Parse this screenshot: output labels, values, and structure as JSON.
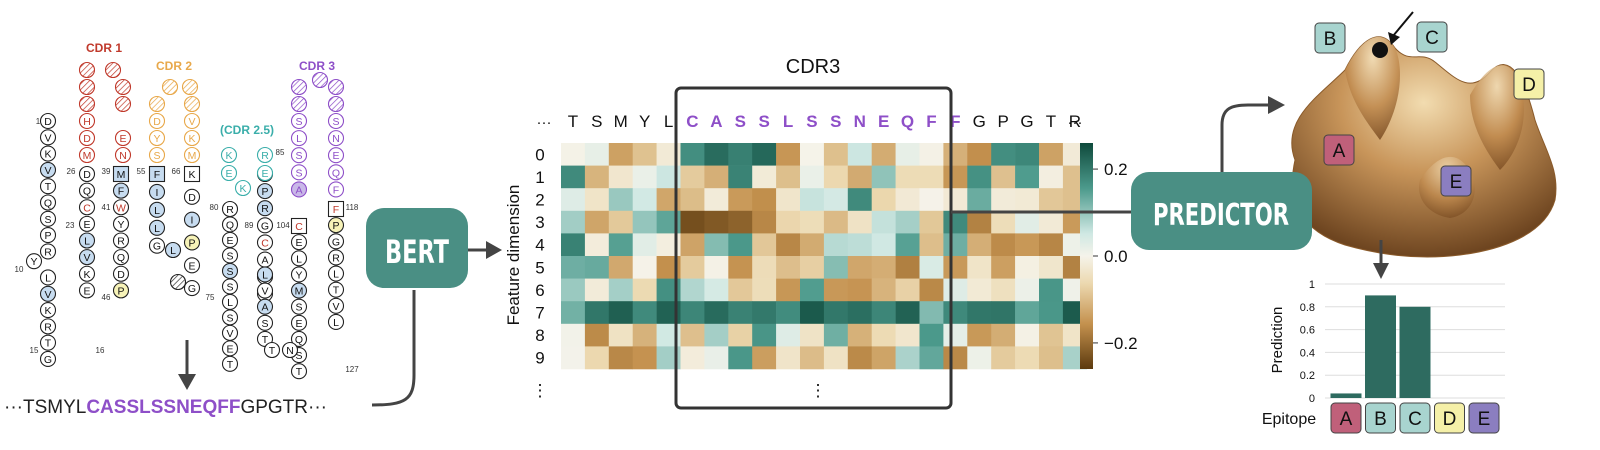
{
  "structure": {
    "cdr1_label": "CDR 1",
    "cdr2_label": "CDR 2",
    "cdr25_label": "(CDR 2.5)",
    "cdr3_label": "CDR 3",
    "numbers": [
      "1",
      "10",
      "15",
      "16",
      "23",
      "26",
      "39",
      "41",
      "46",
      "55",
      "66",
      "75",
      "80",
      "85",
      "89",
      "104",
      "118",
      "127"
    ],
    "strand1": [
      "D",
      "V",
      "K",
      "V",
      "T",
      "Q",
      "S",
      "P",
      "R",
      "Y",
      "L",
      "V",
      "K",
      "R",
      "T",
      "G"
    ],
    "strand2": [
      "D",
      "Q",
      "C",
      "E",
      "L",
      "V",
      "K",
      "E"
    ],
    "strand3": [
      "M",
      "F",
      "W",
      "Y",
      "R",
      "Q",
      "D",
      "P"
    ],
    "strand4": [
      "F",
      "I",
      "L",
      "L",
      "G"
    ],
    "strand5": [
      "K",
      "D",
      "I",
      "P",
      "E",
      "G"
    ],
    "strand6": [
      "R",
      "Q",
      "E",
      "S",
      "S",
      "S",
      "L",
      "S",
      "V",
      "E",
      "T"
    ],
    "strand7": [
      "I",
      "P",
      "R",
      "G",
      "C",
      "A",
      "S",
      "S"
    ],
    "strand8": [
      "S",
      "L",
      "S",
      "S",
      "A",
      "C",
      "R",
      "E",
      "K",
      "V"
    ],
    "strand9": [
      "S",
      "N",
      "E",
      "Q",
      "F",
      "F",
      "P",
      "G",
      "R",
      "G",
      "T",
      "R",
      "L",
      "T",
      "V",
      "L"
    ],
    "cdr1_loop": [
      "H",
      "D",
      "M",
      "E",
      "N"
    ],
    "cdr2_loop": [
      "D",
      "Y",
      "S",
      "V",
      "K",
      "M"
    ],
    "cdr25_loop": [
      "K",
      "E",
      "K",
      "R",
      "E"
    ]
  },
  "sequence": {
    "prefix": "···TSMYL",
    "cdr3": "CASSLSSNEQFF",
    "suffix": "GPGTR···"
  },
  "bert_label": "BERT",
  "predictor_label": "PREDICTOR",
  "heatmap": {
    "title": "CDR3",
    "ylabel": "Feature dimension",
    "row_labels": [
      "0",
      "1",
      "2",
      "3",
      "4",
      "5",
      "6",
      "7",
      "8",
      "9"
    ],
    "more_rows": "⋮",
    "more_cols": "⋮",
    "seq_left_dots": "···",
    "seq_right_dots": "···",
    "residues": [
      "T",
      "S",
      "M",
      "Y",
      "L",
      "C",
      "A",
      "S",
      "S",
      "L",
      "S",
      "S",
      "N",
      "E",
      "Q",
      "F",
      "F",
      "G",
      "P",
      "G",
      "T",
      "R"
    ],
    "cdr3_range": [
      5,
      16
    ],
    "colorbar_ticks": [
      "0.2",
      "0.0",
      "−0.2"
    ],
    "colorbar_values": [
      0.2,
      0.0,
      -0.2
    ],
    "value_range": [
      -0.26,
      0.26
    ]
  },
  "landscape": {
    "epitopes": [
      "A",
      "B",
      "C",
      "D",
      "E"
    ],
    "colors": {
      "A": "#c0607a",
      "B": "#a8d4cf",
      "C": "#a8d4cf",
      "D": "#f5f0a8",
      "E": "#8b7ec0"
    }
  },
  "chart_data": {
    "type": "bar",
    "categories": [
      "A",
      "B",
      "C",
      "D",
      "E"
    ],
    "values": [
      0.04,
      0.9,
      0.8,
      0.0,
      0.0
    ],
    "ylabel": "Prediction",
    "xlabel": "Epitope",
    "ylim": [
      0,
      1
    ],
    "yticks": [
      "0",
      "0.2",
      "0.4",
      "0.6",
      "0.8",
      "1"
    ],
    "bar_color": "#2e6b60",
    "grid": true
  },
  "colors": {
    "teal": "#4a8f84",
    "cdr1": "#c0392b",
    "cdr2": "#e8a84a",
    "cdr25": "#3aaeaa",
    "cdr3": "#8e4fc8",
    "blue_fill": "#c7dcf0",
    "yellow_fill": "#f7f3b8"
  }
}
